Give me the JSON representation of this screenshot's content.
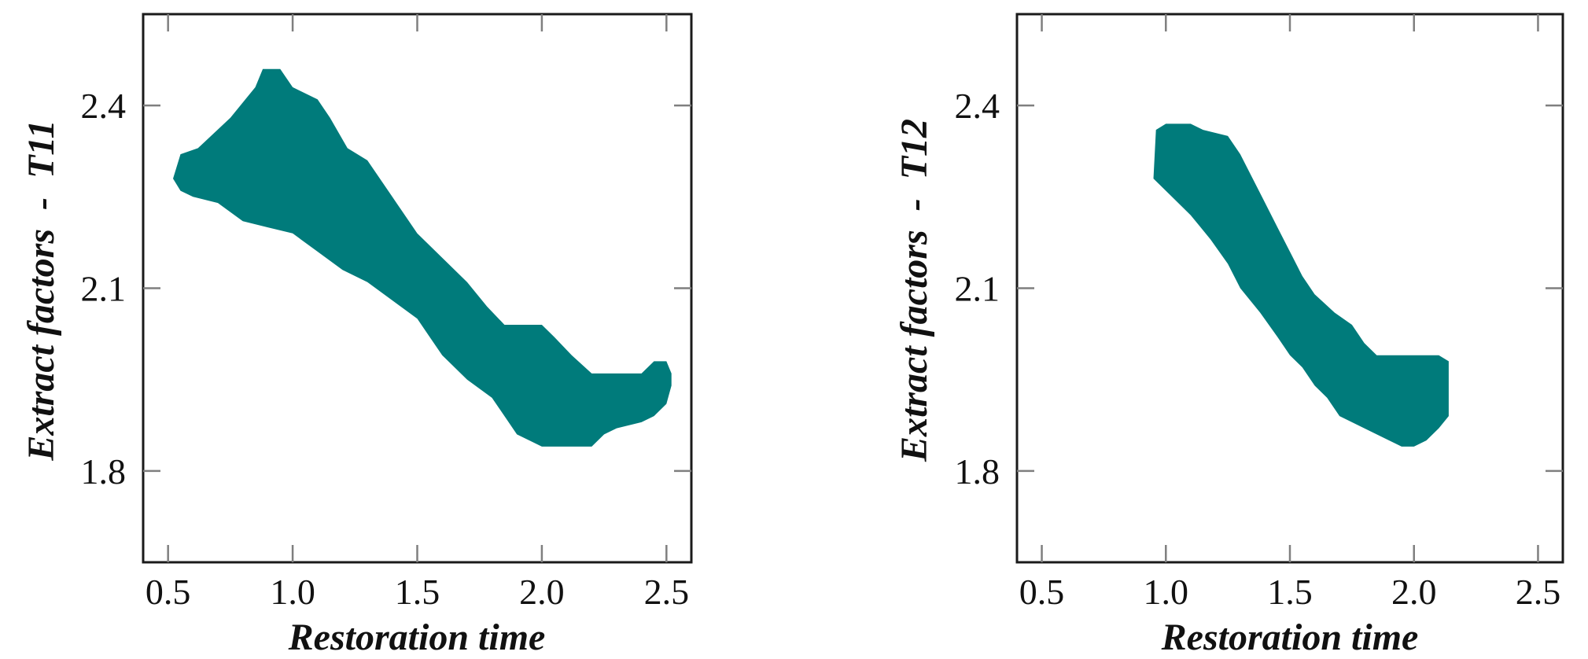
{
  "colors": {
    "region": "#007b7b",
    "frame": "#1a1a1a",
    "tick": "#7f7f7f",
    "text": "#111111"
  },
  "chart_data": [
    {
      "type": "area",
      "region_kind": "band",
      "xlabel": "Restoration time",
      "ylabel": "Extract factors  -  T11",
      "xlim": [
        0.4,
        2.6
      ],
      "ylim": [
        1.65,
        2.55
      ],
      "xticks": [
        0.5,
        1.0,
        1.5,
        2.0,
        2.5
      ],
      "xtick_labels": [
        "0.5",
        "1.0",
        "1.5",
        "2.0",
        "2.5"
      ],
      "yticks": [
        1.8,
        2.1,
        2.4
      ],
      "ytick_labels": [
        "1.8",
        "2.1",
        "2.4"
      ],
      "grid": false,
      "upper": [
        [
          0.52,
          2.28
        ],
        [
          0.55,
          2.32
        ],
        [
          0.62,
          2.33
        ],
        [
          0.75,
          2.38
        ],
        [
          0.85,
          2.43
        ],
        [
          0.88,
          2.46
        ],
        [
          0.95,
          2.46
        ],
        [
          1.0,
          2.43
        ],
        [
          1.1,
          2.41
        ],
        [
          1.15,
          2.38
        ],
        [
          1.22,
          2.33
        ],
        [
          1.3,
          2.31
        ],
        [
          1.4,
          2.25
        ],
        [
          1.5,
          2.19
        ],
        [
          1.6,
          2.15
        ],
        [
          1.7,
          2.11
        ],
        [
          1.78,
          2.07
        ],
        [
          1.85,
          2.04
        ],
        [
          1.95,
          2.04
        ],
        [
          2.0,
          2.04
        ],
        [
          2.05,
          2.02
        ],
        [
          2.12,
          1.99
        ],
        [
          2.2,
          1.96
        ],
        [
          2.3,
          1.96
        ],
        [
          2.4,
          1.96
        ],
        [
          2.45,
          1.98
        ],
        [
          2.5,
          1.98
        ],
        [
          2.52,
          1.96
        ]
      ],
      "lower": [
        [
          0.52,
          2.28
        ],
        [
          0.55,
          2.26
        ],
        [
          0.6,
          2.25
        ],
        [
          0.7,
          2.24
        ],
        [
          0.8,
          2.21
        ],
        [
          0.9,
          2.2
        ],
        [
          1.0,
          2.19
        ],
        [
          1.1,
          2.16
        ],
        [
          1.2,
          2.13
        ],
        [
          1.3,
          2.11
        ],
        [
          1.4,
          2.08
        ],
        [
          1.5,
          2.05
        ],
        [
          1.55,
          2.02
        ],
        [
          1.6,
          1.99
        ],
        [
          1.7,
          1.95
        ],
        [
          1.8,
          1.92
        ],
        [
          1.85,
          1.89
        ],
        [
          1.9,
          1.86
        ],
        [
          1.95,
          1.85
        ],
        [
          2.0,
          1.84
        ],
        [
          2.1,
          1.84
        ],
        [
          2.2,
          1.84
        ],
        [
          2.25,
          1.86
        ],
        [
          2.3,
          1.87
        ],
        [
          2.4,
          1.88
        ],
        [
          2.45,
          1.89
        ],
        [
          2.5,
          1.91
        ],
        [
          2.52,
          1.94
        ]
      ]
    },
    {
      "type": "area",
      "region_kind": "band",
      "xlabel": "Restoration time",
      "ylabel": "Extract factors  -  T12",
      "xlim": [
        0.4,
        2.6
      ],
      "ylim": [
        1.65,
        2.55
      ],
      "xticks": [
        0.5,
        1.0,
        1.5,
        2.0,
        2.5
      ],
      "xtick_labels": [
        "0.5",
        "1.0",
        "1.5",
        "2.0",
        "2.5"
      ],
      "yticks": [
        1.8,
        2.1,
        2.4
      ],
      "ytick_labels": [
        "1.8",
        "2.1",
        "2.4"
      ],
      "grid": false,
      "upper": [
        [
          0.95,
          2.28
        ],
        [
          0.96,
          2.36
        ],
        [
          1.0,
          2.37
        ],
        [
          1.1,
          2.37
        ],
        [
          1.15,
          2.36
        ],
        [
          1.25,
          2.35
        ],
        [
          1.3,
          2.32
        ],
        [
          1.35,
          2.28
        ],
        [
          1.4,
          2.24
        ],
        [
          1.45,
          2.2
        ],
        [
          1.5,
          2.16
        ],
        [
          1.55,
          2.12
        ],
        [
          1.6,
          2.09
        ],
        [
          1.68,
          2.06
        ],
        [
          1.75,
          2.04
        ],
        [
          1.8,
          2.01
        ],
        [
          1.85,
          1.99
        ],
        [
          1.9,
          1.99
        ],
        [
          2.0,
          1.99
        ],
        [
          2.1,
          1.99
        ],
        [
          2.14,
          1.98
        ]
      ],
      "lower": [
        [
          0.95,
          2.28
        ],
        [
          1.0,
          2.26
        ],
        [
          1.1,
          2.22
        ],
        [
          1.18,
          2.18
        ],
        [
          1.25,
          2.14
        ],
        [
          1.3,
          2.1
        ],
        [
          1.38,
          2.06
        ],
        [
          1.45,
          2.02
        ],
        [
          1.5,
          1.99
        ],
        [
          1.55,
          1.97
        ],
        [
          1.6,
          1.94
        ],
        [
          1.65,
          1.92
        ],
        [
          1.7,
          1.89
        ],
        [
          1.8,
          1.87
        ],
        [
          1.9,
          1.85
        ],
        [
          1.95,
          1.84
        ],
        [
          2.0,
          1.84
        ],
        [
          2.05,
          1.85
        ],
        [
          2.1,
          1.87
        ],
        [
          2.14,
          1.89
        ]
      ]
    }
  ]
}
